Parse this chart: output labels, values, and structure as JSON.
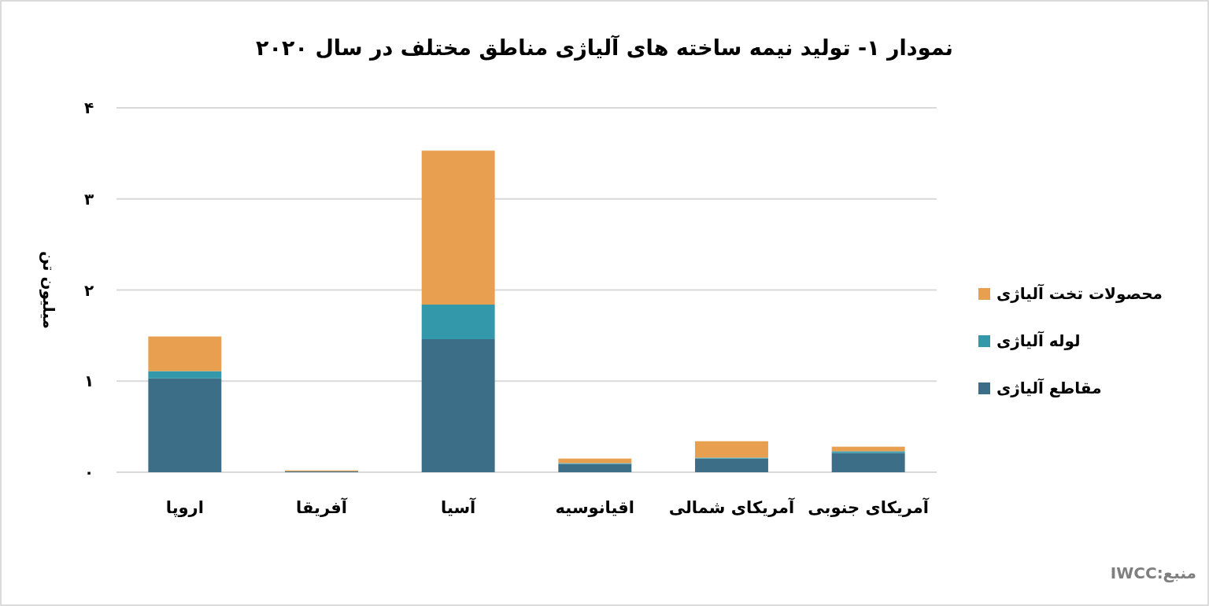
{
  "chart_data": {
    "type": "bar",
    "stacked": true,
    "title": "نمودار ۱- تولید نیمه ساخته های آلیاژی مناطق مختلف در سال ۲۰۲۰",
    "ylabel": "میلیون تن",
    "categories": [
      "اروپا",
      "آفریقا",
      "آسیا",
      "اقیانوسیه",
      "آمریکای شمالی",
      "آمریکای جنوبی"
    ],
    "series": [
      {
        "name": "مقاطع آلیاژی",
        "color": "#3d6e87",
        "values": [
          1.03,
          0.01,
          1.46,
          0.09,
          0.15,
          0.21
        ]
      },
      {
        "name": "لوله آلیاژی",
        "color": "#3399aa",
        "values": [
          0.08,
          0,
          0.38,
          0.01,
          0.01,
          0.02
        ]
      },
      {
        "name": "محصولات تخت آلیاژی",
        "color": "#e89f50",
        "values": [
          0.38,
          0.01,
          1.69,
          0.05,
          0.18,
          0.05
        ]
      }
    ],
    "ylim": [
      0,
      4
    ],
    "yticks": [
      {
        "value": 0,
        "label": "۰"
      },
      {
        "value": 1,
        "label": "۱"
      },
      {
        "value": 2,
        "label": "۲"
      },
      {
        "value": 3,
        "label": "۳"
      },
      {
        "value": 4,
        "label": "۴"
      }
    ],
    "grid": "y",
    "legend": "right",
    "annotations": [
      "منبع:IWCC"
    ]
  }
}
